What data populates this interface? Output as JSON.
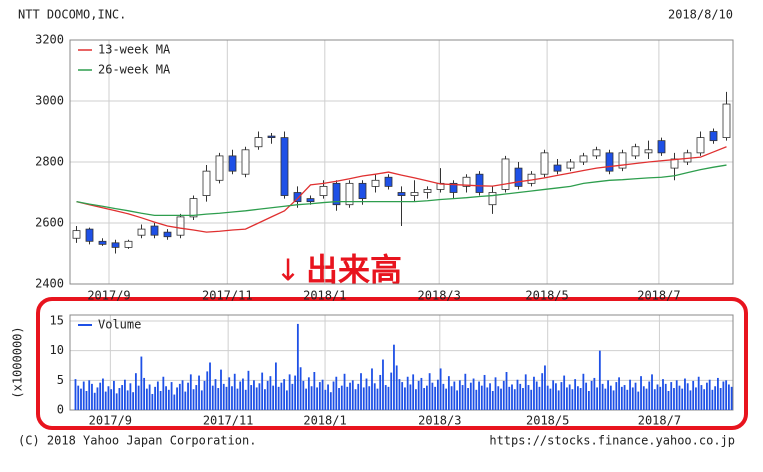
{
  "chart_data": [
    {
      "type": "candlestick",
      "title": "NTT DOCOMO,INC.",
      "date": "2018/8/10",
      "open": [
        2550,
        2580,
        2540,
        2535,
        2520,
        2560,
        2590,
        2570,
        2560,
        2620,
        2690,
        2740,
        2820,
        2760,
        2850,
        2885,
        2880,
        2700,
        2680,
        2690,
        2730,
        2660,
        2730,
        2720,
        2750,
        2700,
        2690,
        2700,
        2710,
        2730,
        2720,
        2760,
        2660,
        2710,
        2780,
        2730,
        2760,
        2790,
        2780,
        2800,
        2820,
        2830,
        2780,
        2820,
        2830,
        2870,
        2780,
        2800,
        2830,
        2900,
        2880
      ],
      "high": [
        2590,
        2585,
        2550,
        2545,
        2545,
        2595,
        2600,
        2580,
        2630,
        2690,
        2790,
        2830,
        2840,
        2850,
        2900,
        2895,
        2900,
        2720,
        2690,
        2740,
        2740,
        2740,
        2740,
        2760,
        2760,
        2720,
        2740,
        2720,
        2780,
        2740,
        2760,
        2770,
        2720,
        2820,
        2800,
        2770,
        2840,
        2810,
        2810,
        2830,
        2850,
        2840,
        2840,
        2860,
        2870,
        2880,
        2830,
        2840,
        2900,
        2910,
        3030
      ],
      "low": [
        2535,
        2530,
        2525,
        2500,
        2515,
        2550,
        2550,
        2545,
        2550,
        2610,
        2670,
        2730,
        2760,
        2750,
        2840,
        2860,
        2680,
        2650,
        2660,
        2680,
        2640,
        2650,
        2660,
        2700,
        2710,
        2590,
        2670,
        2680,
        2700,
        2680,
        2700,
        2690,
        2630,
        2700,
        2710,
        2720,
        2750,
        2760,
        2770,
        2790,
        2810,
        2760,
        2770,
        2810,
        2810,
        2820,
        2740,
        2790,
        2820,
        2860,
        2870
      ],
      "close": [
        2575,
        2540,
        2530,
        2520,
        2540,
        2580,
        2560,
        2555,
        2620,
        2680,
        2770,
        2820,
        2770,
        2840,
        2880,
        2880,
        2690,
        2670,
        2670,
        2720,
        2660,
        2730,
        2680,
        2740,
        2720,
        2690,
        2700,
        2710,
        2730,
        2700,
        2750,
        2700,
        2700,
        2810,
        2720,
        2760,
        2830,
        2770,
        2800,
        2820,
        2840,
        2770,
        2830,
        2850,
        2840,
        2830,
        2810,
        2830,
        2880,
        2870,
        2990
      ],
      "up_color": "#ffffff",
      "down_color": "#1e50e6",
      "series": [
        {
          "name": "13-week MA",
          "color": "#e03030",
          "values": [
            2670,
            2660,
            2650,
            2640,
            2630,
            2617,
            2603,
            2590,
            2583,
            2577,
            2570,
            2573,
            2577,
            2580,
            2600,
            2620,
            2640,
            2680,
            2725,
            2730,
            2737,
            2745,
            2754,
            2760,
            2767,
            2757,
            2748,
            2738,
            2728,
            2726,
            2724,
            2722,
            2721,
            2728,
            2735,
            2741,
            2748,
            2756,
            2764,
            2772,
            2780,
            2785,
            2790,
            2795,
            2800,
            2804,
            2808,
            2812,
            2816,
            2833,
            2850
          ]
        },
        {
          "name": "26-week MA",
          "color": "#2e9e4e",
          "values": [
            2670,
            2662,
            2655,
            2647,
            2640,
            2632,
            2625,
            2625,
            2625,
            2625,
            2629,
            2632,
            2636,
            2640,
            2645,
            2650,
            2655,
            2660,
            2663,
            2667,
            2670,
            2670,
            2670,
            2670,
            2670,
            2670,
            2670,
            2673,
            2677,
            2680,
            2683,
            2687,
            2690,
            2695,
            2700,
            2705,
            2710,
            2715,
            2720,
            2730,
            2735,
            2740,
            2742,
            2745,
            2748,
            2750,
            2755,
            2765,
            2775,
            2783,
            2790
          ]
        }
      ],
      "xlim": [
        -0.5,
        50.5
      ],
      "xticks": [
        {
          "value": 2.5,
          "label": "2017/9"
        },
        {
          "value": 11.6,
          "label": "2017/11"
        },
        {
          "value": 19.1,
          "label": "2018/1"
        },
        {
          "value": 27.9,
          "label": "2018/3"
        },
        {
          "value": 36.2,
          "label": "2018/5"
        },
        {
          "value": 44.8,
          "label": "2018/7"
        }
      ],
      "ylim": [
        2400,
        3200
      ],
      "yticks": [
        2400,
        2600,
        2800,
        3000,
        3200
      ],
      "grid": true,
      "legend": "upper left"
    },
    {
      "type": "bar",
      "ylabel": "(x1000000)",
      "series": [
        {
          "name": "Volume",
          "color": "#1e50e6",
          "values": [
            5.2,
            4.1,
            3.6,
            4.8,
            3.2,
            5.0,
            4.4,
            2.9,
            3.8,
            4.6,
            5.3,
            3.1,
            4.0,
            3.5,
            4.9,
            2.8,
            3.7,
            4.2,
            5.1,
            3.3,
            4.5,
            3.0,
            6.2,
            4.1,
            9.0,
            5.4,
            3.6,
            4.3,
            2.7,
            3.9,
            4.8,
            3.2,
            5.6,
            4.0,
            3.4,
            4.7,
            2.6,
            3.8,
            4.4,
            5.0,
            3.1,
            4.6,
            6.0,
            3.5,
            4.2,
            5.8,
            3.3,
            4.9,
            6.5,
            8.0,
            4.1,
            5.2,
            3.7,
            6.8,
            4.4,
            3.9,
            5.5,
            4.0,
            6.1,
            3.6,
            4.8,
            5.3,
            3.4,
            6.6,
            4.2,
            5.0,
            3.8,
            4.5,
            6.3,
            3.5,
            4.9,
            5.7,
            4.1,
            8.0,
            3.9,
            4.6,
            5.2,
            3.3,
            6.0,
            4.4,
            5.8,
            14.5,
            7.2,
            4.9,
            3.6,
            5.5,
            4.0,
            6.4,
            3.8,
            4.7,
            5.1,
            3.4,
            4.3,
            3.0,
            4.8,
            5.6,
            3.7,
            4.1,
            6.1,
            3.9,
            4.6,
            5.0,
            3.5,
            4.4,
            6.2,
            3.8,
            5.3,
            4.0,
            7.0,
            4.5,
            3.6,
            5.9,
            8.5,
            4.2,
            3.9,
            6.3,
            11.0,
            7.5,
            5.2,
            4.7,
            3.8,
            5.6,
            4.3,
            6.0,
            3.5,
            4.9,
            5.4,
            3.7,
            4.1,
            6.2,
            4.6,
            3.9,
            5.1,
            7.0,
            4.4,
            3.6,
            5.7,
            4.0,
            4.8,
            3.3,
            5.0,
            4.2,
            6.1,
            3.7,
            4.6,
            5.3,
            3.4,
            4.8,
            4.1,
            5.9,
            3.8,
            4.5,
            3.2,
            5.5,
            4.0,
            3.6,
            4.9,
            6.4,
            3.9,
            4.3,
            3.5,
            5.1,
            4.4,
            3.7,
            6.0,
            4.2,
            3.4,
            5.6,
            4.8,
            3.9,
            6.2,
            7.5,
            4.1,
            3.6,
            5.0,
            4.5,
            3.3,
            4.7,
            5.8,
            3.8,
            4.3,
            3.5,
            5.2,
            4.0,
            3.7,
            6.1,
            4.6,
            3.2,
            4.9,
            5.4,
            3.8,
            10.0,
            4.4,
            3.6,
            5.0,
            4.1,
            3.3,
            4.7,
            5.5,
            3.9,
            4.2,
            3.4,
            5.1,
            3.8,
            4.6,
            3.1,
            5.7,
            4.0,
            3.6,
            4.8,
            6.0,
            3.5,
            4.3,
            3.9,
            5.2,
            4.4,
            3.2,
            4.7,
            3.7,
            5.0,
            4.1,
            3.6,
            5.3,
            4.5,
            3.3,
            4.9,
            3.8,
            5.6,
            4.2,
            3.5,
            4.6,
            5.1,
            3.4,
            4.0,
            5.4,
            3.7,
            4.8,
            5.0,
            4.3,
            3.9
          ]
        }
      ],
      "xlim": [
        -2,
        239.5
      ],
      "xticks": [
        {
          "value": 12.7,
          "label": "2017/9"
        },
        {
          "value": 55.6,
          "label": "2017/11"
        },
        {
          "value": 90.9,
          "label": "2018/1"
        },
        {
          "value": 132.7,
          "label": "2018/3"
        },
        {
          "value": 172,
          "label": "2018/5"
        },
        {
          "value": 212.7,
          "label": "2018/7"
        }
      ],
      "ylim": [
        0,
        16
      ],
      "yticks": [
        0,
        5,
        10,
        15
      ],
      "grid": true,
      "legend": "upper left"
    }
  ],
  "annotation": {
    "arrow": "↓",
    "text": "出来高"
  },
  "footer": {
    "copyright": "(C) 2018 Yahoo Japan Corporation.",
    "url": "https://stocks.finance.yahoo.co.jp"
  }
}
